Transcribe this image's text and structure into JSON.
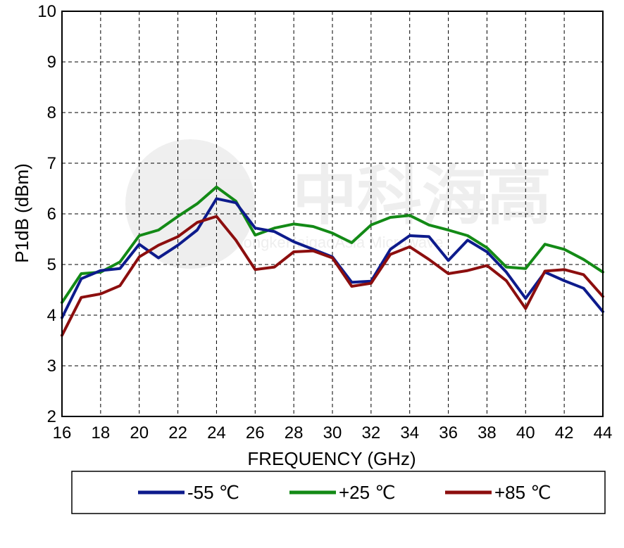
{
  "chart_data": {
    "type": "line",
    "xlabel": "FREQUENCY (GHz)",
    "ylabel": "P1dB (dBm)",
    "xlim": [
      16,
      44
    ],
    "ylim": [
      2,
      10
    ],
    "xticks": [
      16,
      18,
      20,
      22,
      24,
      26,
      28,
      30,
      32,
      34,
      36,
      38,
      40,
      42,
      44
    ],
    "yticks": [
      2,
      3,
      4,
      5,
      6,
      7,
      8,
      9,
      10
    ],
    "grid": true,
    "legend_position": "bottom",
    "x": [
      16,
      17,
      18,
      19,
      20,
      21,
      22,
      23,
      24,
      25,
      26,
      27,
      28,
      29,
      30,
      31,
      32,
      33,
      34,
      35,
      36,
      37,
      38,
      39,
      40,
      41,
      42,
      43,
      44
    ],
    "series": [
      {
        "name": "-55 ℃",
        "color": "#0d1b8c",
        "values": [
          3.95,
          4.72,
          4.88,
          4.92,
          5.4,
          5.13,
          5.38,
          5.68,
          6.3,
          6.22,
          5.72,
          5.65,
          5.45,
          5.3,
          5.15,
          4.65,
          4.67,
          5.3,
          5.57,
          5.55,
          5.08,
          5.48,
          5.25,
          4.85,
          4.33,
          4.85,
          4.68,
          4.53,
          4.07
        ]
      },
      {
        "name": "+25 ℃",
        "color": "#138a16",
        "values": [
          4.25,
          4.82,
          4.85,
          5.05,
          5.57,
          5.68,
          5.95,
          6.2,
          6.53,
          6.25,
          5.58,
          5.72,
          5.8,
          5.75,
          5.62,
          5.43,
          5.78,
          5.93,
          5.97,
          5.78,
          5.68,
          5.57,
          5.33,
          4.95,
          4.92,
          5.4,
          5.3,
          5.1,
          4.85
        ]
      },
      {
        "name": "+85 ℃",
        "color": "#8c0e0e",
        "values": [
          3.6,
          4.35,
          4.42,
          4.58,
          5.15,
          5.38,
          5.55,
          5.83,
          5.95,
          5.48,
          4.9,
          4.95,
          5.25,
          5.27,
          5.13,
          4.57,
          4.63,
          5.2,
          5.35,
          5.1,
          4.82,
          4.88,
          4.98,
          4.68,
          4.13,
          4.87,
          4.9,
          4.8,
          4.37
        ]
      }
    ]
  },
  "watermark": {
    "text": "中科海高",
    "subtext": "ZhongkeHaigaoAsia Microwave"
  }
}
